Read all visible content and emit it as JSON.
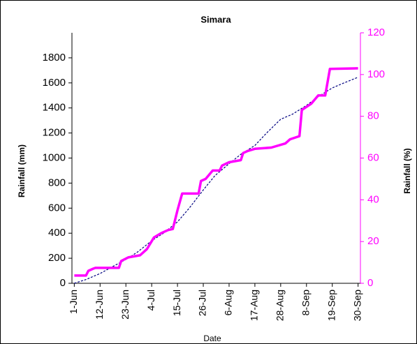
{
  "chart_data": {
    "type": "line",
    "title": "Simara",
    "x_label": "Date",
    "y_label": "Rainfall (mm)",
    "y2_label": "Rainfall (%)",
    "xlim": [
      -1,
      122
    ],
    "xticks": [
      {
        "value": 0,
        "label": "1-Jun"
      },
      {
        "value": 11,
        "label": "12-Jun"
      },
      {
        "value": 22,
        "label": "23-Jun"
      },
      {
        "value": 33,
        "label": "4-Jul"
      },
      {
        "value": 44,
        "label": "15-Jul"
      },
      {
        "value": 55,
        "label": "26-Jul"
      },
      {
        "value": 66,
        "label": "6-Aug"
      },
      {
        "value": 77,
        "label": "17-Aug"
      },
      {
        "value": 88,
        "label": "28-Aug"
      },
      {
        "value": 99,
        "label": "8-Sep"
      },
      {
        "value": 110,
        "label": "19-Sep"
      },
      {
        "value": 121,
        "label": "30-Sep"
      }
    ],
    "ylim": [
      0,
      2000
    ],
    "yticks": [
      0,
      200,
      400,
      600,
      800,
      1000,
      1200,
      1400,
      1600,
      1800
    ],
    "y2lim": [
      0,
      120
    ],
    "y2ticks": [
      0,
      20,
      40,
      60,
      80,
      100,
      120
    ],
    "y2_color": "#ff00ff",
    "series": [
      {
        "color": "#000080",
        "dashed": true,
        "width": 1.2,
        "x": [
          0,
          5,
          11,
          16,
          22,
          27,
          33,
          38,
          44,
          49,
          55,
          60,
          66,
          71,
          77,
          82,
          88,
          93,
          99,
          104,
          110,
          115,
          121
        ],
        "values": [
          0,
          30,
          78,
          130,
          190,
          250,
          340,
          400,
          490,
          600,
          745,
          860,
          955,
          1030,
          1100,
          1200,
          1310,
          1350,
          1420,
          1490,
          1560,
          1600,
          1645
        ]
      },
      {
        "color": "#ff00ff",
        "axis": "y2",
        "width": 3.5,
        "x": [
          0,
          5,
          6,
          8,
          9,
          19,
          20,
          23,
          28,
          31,
          34,
          37,
          40,
          42,
          44,
          46,
          53,
          54,
          56,
          59,
          62,
          63,
          66,
          71,
          72,
          74,
          77,
          84,
          90,
          92,
          96,
          97,
          101,
          104,
          107,
          109,
          121
        ],
        "values": [
          3.7,
          3.7,
          6,
          7,
          7.4,
          7.4,
          10.7,
          12.4,
          13.4,
          16.4,
          22,
          24,
          25.5,
          26,
          35,
          43,
          43,
          49,
          50,
          54,
          54,
          56.4,
          58,
          59,
          62.4,
          63.4,
          64.4,
          65,
          67,
          69,
          70.5,
          83,
          86,
          90,
          90,
          102.7,
          103
        ]
      }
    ]
  }
}
